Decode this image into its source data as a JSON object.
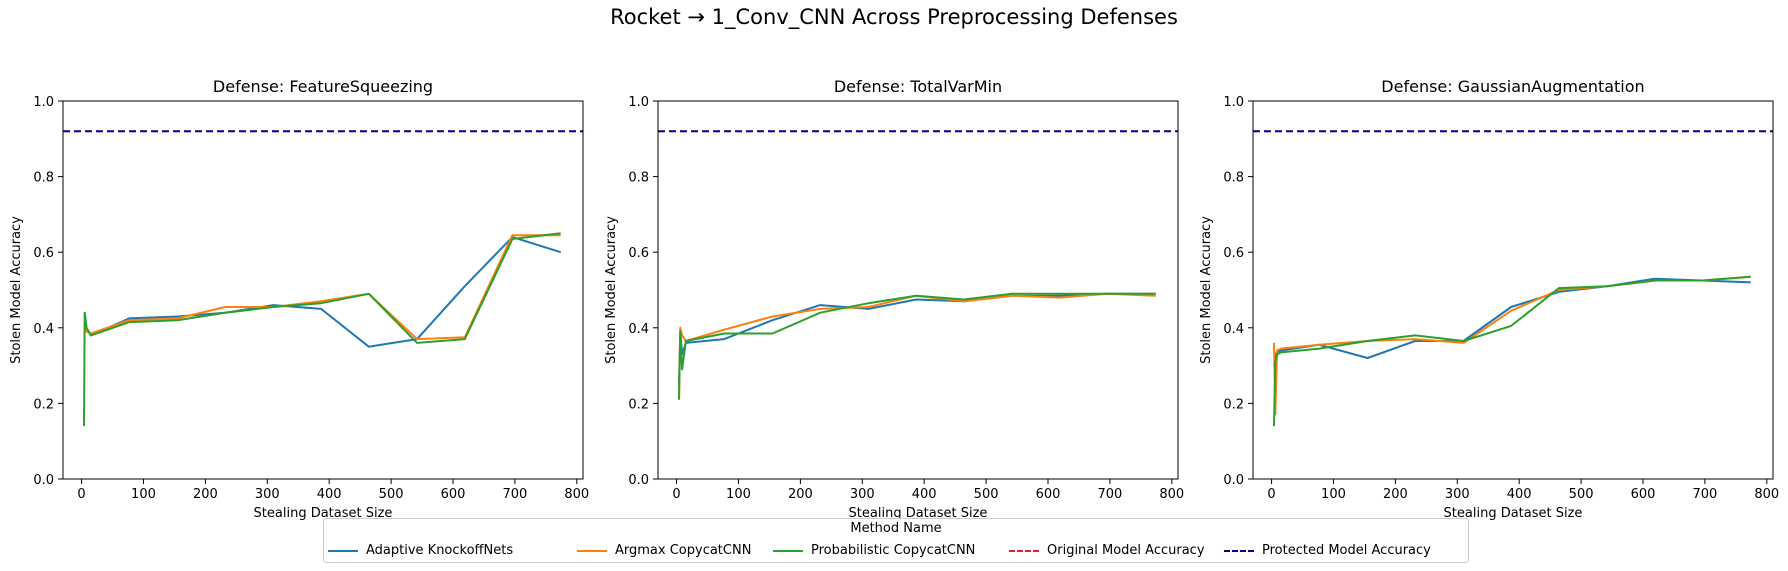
{
  "title": "Rocket → 1_Conv_CNN Across Preprocessing Defenses",
  "legend": {
    "title": "Method Name",
    "entries": [
      {
        "label": "Adaptive KnockoffNets",
        "color": "#1f77b4",
        "style": "solid"
      },
      {
        "label": "Argmax CopycatCNN",
        "color": "#ff7f0e",
        "style": "solid"
      },
      {
        "label": "Probabilistic CopycatCNN",
        "color": "#2ca02c",
        "style": "solid"
      },
      {
        "label": "Original Model Accuracy",
        "color": "#d62728",
        "style": "dashed"
      },
      {
        "label": "Protected Model Accuracy",
        "color": "#00008b",
        "style": "dashed"
      }
    ]
  },
  "chart_data": [
    {
      "type": "line",
      "title": "Defense: FeatureSqueezing",
      "xlabel": "Stealing Dataset Size",
      "ylabel": "Stolen Model Accuracy",
      "xlim": [
        -30,
        810
      ],
      "ylim": [
        0,
        1
      ],
      "xticks": [
        0,
        100,
        200,
        300,
        400,
        500,
        600,
        700,
        800
      ],
      "yticks": [
        0.0,
        0.2,
        0.4,
        0.6,
        0.8,
        1.0
      ],
      "protected_accuracy": 0.92,
      "series": [
        {
          "name": "Adaptive KnockoffNets",
          "x": [
            5,
            8,
            15,
            77,
            155,
            232,
            310,
            387,
            464,
            542,
            619,
            696,
            774
          ],
          "y": [
            0.44,
            0.4,
            0.38,
            0.425,
            0.43,
            0.44,
            0.46,
            0.45,
            0.35,
            0.37,
            0.51,
            0.64,
            0.6
          ]
        },
        {
          "name": "Argmax CopycatCNN",
          "x": [
            5,
            8,
            15,
            77,
            155,
            232,
            310,
            387,
            464,
            542,
            619,
            696,
            774
          ],
          "y": [
            0.43,
            0.39,
            0.385,
            0.42,
            0.425,
            0.455,
            0.455,
            0.47,
            0.49,
            0.37,
            0.375,
            0.645,
            0.645
          ]
        },
        {
          "name": "Probabilistic CopycatCNN",
          "x": [
            4,
            5,
            8,
            15,
            77,
            155,
            232,
            310,
            387,
            464,
            542,
            619,
            696,
            774
          ],
          "y": [
            0.14,
            0.44,
            0.4,
            0.38,
            0.415,
            0.42,
            0.44,
            0.455,
            0.465,
            0.49,
            0.36,
            0.37,
            0.635,
            0.65
          ]
        }
      ]
    },
    {
      "type": "line",
      "title": "Defense: TotalVarMin",
      "xlabel": "Stealing Dataset Size",
      "ylabel": "Stolen Model Accuracy",
      "xlim": [
        -30,
        810
      ],
      "ylim": [
        0,
        1
      ],
      "xticks": [
        0,
        100,
        200,
        300,
        400,
        500,
        600,
        700,
        800
      ],
      "yticks": [
        0.0,
        0.2,
        0.4,
        0.6,
        0.8,
        1.0
      ],
      "protected_accuracy": 0.92,
      "series": [
        {
          "name": "Adaptive KnockoffNets",
          "x": [
            4,
            6,
            9,
            15,
            77,
            155,
            232,
            310,
            387,
            464,
            542,
            619,
            696,
            774
          ],
          "y": [
            0.25,
            0.39,
            0.33,
            0.36,
            0.37,
            0.42,
            0.46,
            0.45,
            0.475,
            0.47,
            0.485,
            0.485,
            0.49,
            0.49
          ]
        },
        {
          "name": "Argmax CopycatCNN",
          "x": [
            4,
            6,
            9,
            15,
            77,
            155,
            232,
            310,
            387,
            464,
            542,
            619,
            696,
            774
          ],
          "y": [
            0.21,
            0.4,
            0.38,
            0.365,
            0.395,
            0.43,
            0.45,
            0.455,
            0.485,
            0.47,
            0.485,
            0.48,
            0.49,
            0.485
          ]
        },
        {
          "name": "Probabilistic CopycatCNN",
          "x": [
            4,
            6,
            9,
            15,
            77,
            155,
            232,
            310,
            387,
            464,
            542,
            619,
            696,
            774
          ],
          "y": [
            0.21,
            0.39,
            0.29,
            0.365,
            0.385,
            0.385,
            0.44,
            0.465,
            0.485,
            0.475,
            0.49,
            0.49,
            0.49,
            0.49
          ]
        }
      ]
    },
    {
      "type": "line",
      "title": "Defense: GaussianAugmentation",
      "xlabel": "Stealing Dataset Size",
      "ylabel": "Stolen Model Accuracy",
      "xlim": [
        -30,
        810
      ],
      "ylim": [
        0,
        1
      ],
      "xticks": [
        0,
        100,
        200,
        300,
        400,
        500,
        600,
        700,
        800
      ],
      "yticks": [
        0.0,
        0.2,
        0.4,
        0.6,
        0.8,
        1.0
      ],
      "protected_accuracy": 0.92,
      "series": [
        {
          "name": "Adaptive KnockoffNets",
          "x": [
            4,
            8,
            15,
            77,
            155,
            232,
            310,
            387,
            464,
            542,
            619,
            696,
            774
          ],
          "y": [
            0.3,
            0.335,
            0.34,
            0.355,
            0.32,
            0.365,
            0.365,
            0.455,
            0.495,
            0.51,
            0.53,
            0.525,
            0.52
          ]
        },
        {
          "name": "Argmax CopycatCNN",
          "x": [
            4,
            6,
            9,
            15,
            77,
            155,
            232,
            310,
            387,
            464,
            542,
            619,
            696,
            774
          ],
          "y": [
            0.36,
            0.17,
            0.34,
            0.345,
            0.355,
            0.365,
            0.37,
            0.36,
            0.445,
            0.5,
            0.51,
            0.525,
            0.525,
            0.535
          ]
        },
        {
          "name": "Probabilistic CopycatCNN",
          "x": [
            4,
            6,
            9,
            15,
            77,
            155,
            232,
            310,
            387,
            464,
            542,
            619,
            696,
            774
          ],
          "y": [
            0.14,
            0.31,
            0.33,
            0.335,
            0.345,
            0.365,
            0.38,
            0.365,
            0.405,
            0.505,
            0.51,
            0.525,
            0.525,
            0.535
          ]
        }
      ]
    }
  ]
}
